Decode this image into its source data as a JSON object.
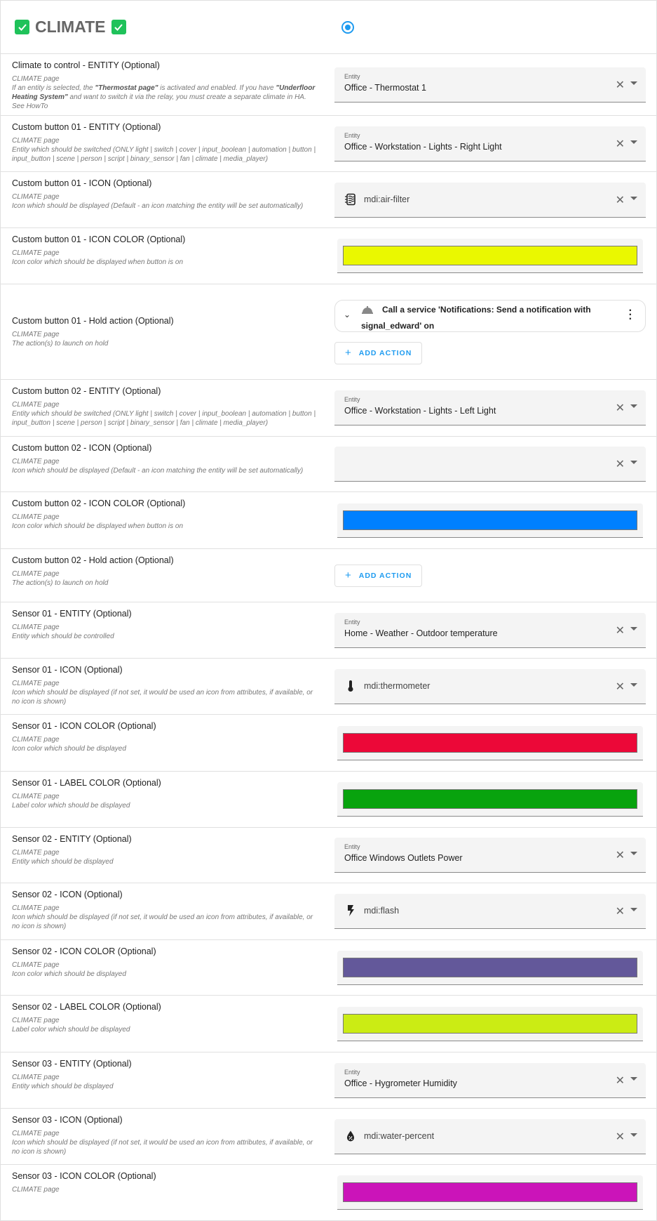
{
  "header": {
    "title": "CLIMATE",
    "radio_selected": true,
    "check_color": "#1fc25a"
  },
  "rows": [
    {
      "title": "Climate to control - ENTITY (Optional)",
      "desc": [
        {
          "t": "CLIMATE page"
        },
        {
          "br": true
        },
        {
          "t": "If an entity is selected, the "
        },
        {
          "t": "\"Thermostat page\"",
          "b": true
        },
        {
          "t": " is activated and enabled. If you have "
        },
        {
          "t": "\"Underfloor Heating System\"",
          "b": true
        },
        {
          "t": " and want to switch it via the relay, you must create a separate climate in HA. See HowTo"
        }
      ],
      "type": "entity",
      "field_label": "Entity",
      "value": "Office - Thermostat 1",
      "h": 88
    },
    {
      "title": "Custom button 01 - ENTITY (Optional)",
      "desc": [
        {
          "t": "CLIMATE page"
        },
        {
          "br": true
        },
        {
          "t": "Entity which should be switched (ONLY light | switch | cover | input_boolean | automation | button | input_button | scene | person | script | binary_sensor | fan | climate | media_player)"
        }
      ],
      "type": "entity",
      "field_label": "Entity",
      "value": "Office - Workstation - Lights - Right Light",
      "h": 80
    },
    {
      "title": "Custom button 01 - ICON (Optional)",
      "desc": [
        {
          "t": "CLIMATE page"
        },
        {
          "br": true
        },
        {
          "t": "Icon which should be displayed (Default - an icon matching the entity will be set automatically)"
        }
      ],
      "type": "icon",
      "icon": "air-filter",
      "value": "mdi:air-filter",
      "h": 80
    },
    {
      "title": "Custom button 01 - ICON COLOR (Optional)",
      "desc": [
        {
          "t": "CLIMATE page"
        },
        {
          "br": true
        },
        {
          "t": "Icon color which should be displayed when button is on"
        }
      ],
      "type": "color",
      "color": "#eaf800",
      "h": 80
    },
    {
      "title": "Custom button 01 - Hold action (Optional)",
      "desc": [
        {
          "t": "CLIMATE page"
        },
        {
          "br": true
        },
        {
          "t": "The action(s) to launch on hold"
        }
      ],
      "type": "action",
      "action_text": "Call a service 'Notifications: Send a notification with signal_edward' on",
      "add_label": "ADD ACTION",
      "h": 136
    },
    {
      "title": "Custom button 02 - ENTITY (Optional)",
      "desc": [
        {
          "t": "CLIMATE page"
        },
        {
          "br": true
        },
        {
          "t": "Entity which should be switched (ONLY light | switch | cover | input_boolean | automation | button | input_button | scene | person | script | binary_sensor | fan | climate | media_player)"
        }
      ],
      "type": "entity",
      "field_label": "Entity",
      "value": "Office - Workstation - Lights - Left Light",
      "h": 81
    },
    {
      "title": "Custom button 02 - ICON (Optional)",
      "desc": [
        {
          "t": "CLIMATE page"
        },
        {
          "br": true
        },
        {
          "t": "Icon which should be displayed (Default - an icon matching the entity will be set automatically)"
        }
      ],
      "type": "empty",
      "h": 79
    },
    {
      "title": "Custom button 02 - ICON COLOR (Optional)",
      "desc": [
        {
          "t": "CLIMATE page"
        },
        {
          "br": true
        },
        {
          "t": "Icon color which should be displayed when button is on"
        }
      ],
      "type": "color",
      "color": "#0080ff",
      "h": 81
    },
    {
      "title": "Custom button 02 - Hold action (Optional)",
      "desc": [
        {
          "t": "CLIMATE page"
        },
        {
          "br": true
        },
        {
          "t": "The action(s) to launch on hold"
        }
      ],
      "type": "add",
      "add_label": "ADD ACTION",
      "h": 76
    },
    {
      "title": "Sensor 01 - ENTITY (Optional)",
      "desc": [
        {
          "t": "CLIMATE page"
        },
        {
          "br": true
        },
        {
          "t": "Entity which should be controlled"
        }
      ],
      "type": "entity",
      "field_label": "Entity",
      "value": "Home - Weather - Outdoor temperature",
      "h": 80
    },
    {
      "title": "Sensor 01 - ICON (Optional)",
      "desc": [
        {
          "t": "CLIMATE page"
        },
        {
          "br": true
        },
        {
          "t": "Icon which should be displayed (if not set, it would be used an icon from attributes, if available, or no icon is shown)"
        }
      ],
      "type": "icon",
      "icon": "thermometer",
      "value": "mdi:thermometer",
      "h": 80
    },
    {
      "title": "Sensor 01 - ICON COLOR (Optional)",
      "desc": [
        {
          "t": "CLIMATE page"
        },
        {
          "br": true
        },
        {
          "t": "Icon color which should be displayed"
        }
      ],
      "type": "color",
      "color": "#ec0838",
      "h": 81
    },
    {
      "title": "Sensor 01 - LABEL COLOR (Optional)",
      "desc": [
        {
          "t": "CLIMATE page"
        },
        {
          "br": true
        },
        {
          "t": "Label color which should be displayed"
        }
      ],
      "type": "color",
      "color": "#08a30e",
      "h": 80
    },
    {
      "title": "Sensor 02 - ENTITY (Optional)",
      "desc": [
        {
          "t": "CLIMATE page"
        },
        {
          "br": true
        },
        {
          "t": "Entity which should be displayed"
        }
      ],
      "type": "entity",
      "field_label": "Entity",
      "value": "Office Windows Outlets Power",
      "h": 79
    },
    {
      "title": "Sensor 02 - ICON (Optional)",
      "desc": [
        {
          "t": "CLIMATE page"
        },
        {
          "br": true
        },
        {
          "t": "Icon which should be displayed (if not set, it would be used an icon from attributes, if available, or no icon is shown)"
        }
      ],
      "type": "icon",
      "icon": "flash",
      "value": "mdi:flash",
      "h": 81
    },
    {
      "title": "Sensor 02 - ICON COLOR (Optional)",
      "desc": [
        {
          "t": "CLIMATE page"
        },
        {
          "br": true
        },
        {
          "t": "Icon color which should be displayed"
        }
      ],
      "type": "color",
      "color": "#63589a",
      "h": 79
    },
    {
      "title": "Sensor 02 - LABEL COLOR (Optional)",
      "desc": [
        {
          "t": "CLIMATE page"
        },
        {
          "br": true
        },
        {
          "t": "Label color which should be displayed"
        }
      ],
      "type": "color",
      "color": "#cbec14",
      "h": 81
    },
    {
      "title": "Sensor 03 - ENTITY (Optional)",
      "desc": [
        {
          "t": "CLIMATE page"
        },
        {
          "br": true
        },
        {
          "t": "Entity which should be displayed"
        }
      ],
      "type": "entity",
      "field_label": "Entity",
      "value": "Office - Hygrometer Humidity",
      "h": 80
    },
    {
      "title": "Sensor 03 - ICON (Optional)",
      "desc": [
        {
          "t": "CLIMATE page"
        },
        {
          "br": true
        },
        {
          "t": "Icon which should be displayed (if not set, it would be used an icon from attributes, if available, or no icon is shown)"
        }
      ],
      "type": "icon",
      "icon": "water-percent",
      "value": "mdi:water-percent",
      "h": 80
    },
    {
      "title": "Sensor 03 - ICON COLOR (Optional)",
      "desc": [
        {
          "t": "CLIMATE page"
        }
      ],
      "type": "color",
      "color": "#cb14b9",
      "h": 80
    }
  ]
}
